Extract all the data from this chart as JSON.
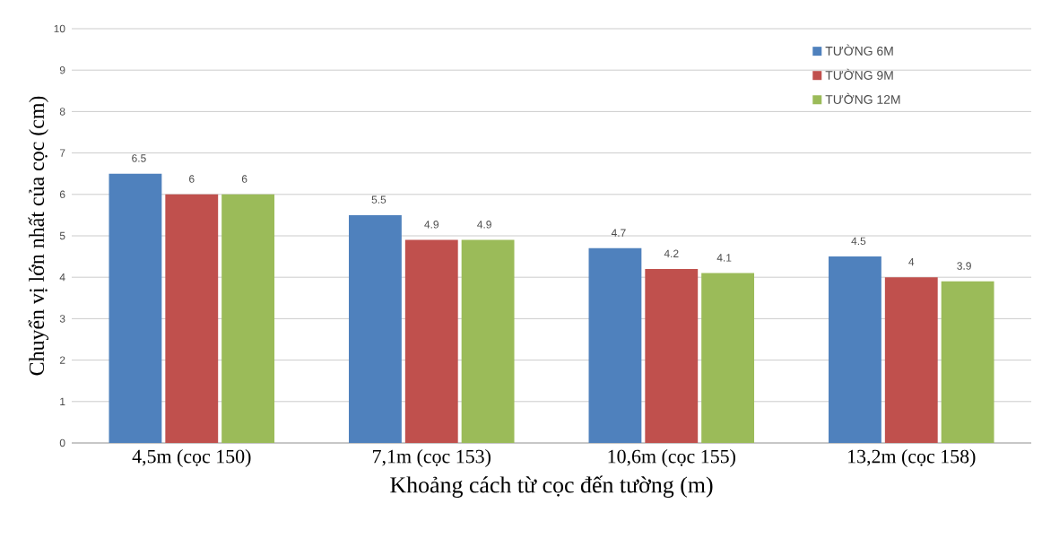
{
  "chart_data": {
    "type": "bar",
    "categories": [
      "4,5m (cọc 150)",
      "7,1m (cọc 153)",
      "10,6m  (cọc 155)",
      "13,2m (cọc 158)"
    ],
    "series": [
      {
        "name": "TƯỜNG 6M",
        "color": "#4f81bd",
        "values": [
          6.5,
          5.5,
          4.7,
          4.5
        ]
      },
      {
        "name": "TƯỜNG 9M",
        "color": "#c0504d",
        "values": [
          6,
          4.9,
          4.2,
          4
        ]
      },
      {
        "name": "TƯỜNG 12M",
        "color": "#9bbb59",
        "values": [
          6,
          4.9,
          4.1,
          3.9
        ]
      }
    ],
    "xlabel": "Khoảng cách từ cọc đến tường (m)",
    "ylabel": "Chuyển vị lớn nhất của cọc (cm)",
    "ylim": [
      0,
      10
    ],
    "yticks": [
      0,
      1,
      2,
      3,
      4,
      5,
      6,
      7,
      8,
      9,
      10
    ],
    "grid": "y",
    "legend": "top right",
    "data_labels": true
  }
}
